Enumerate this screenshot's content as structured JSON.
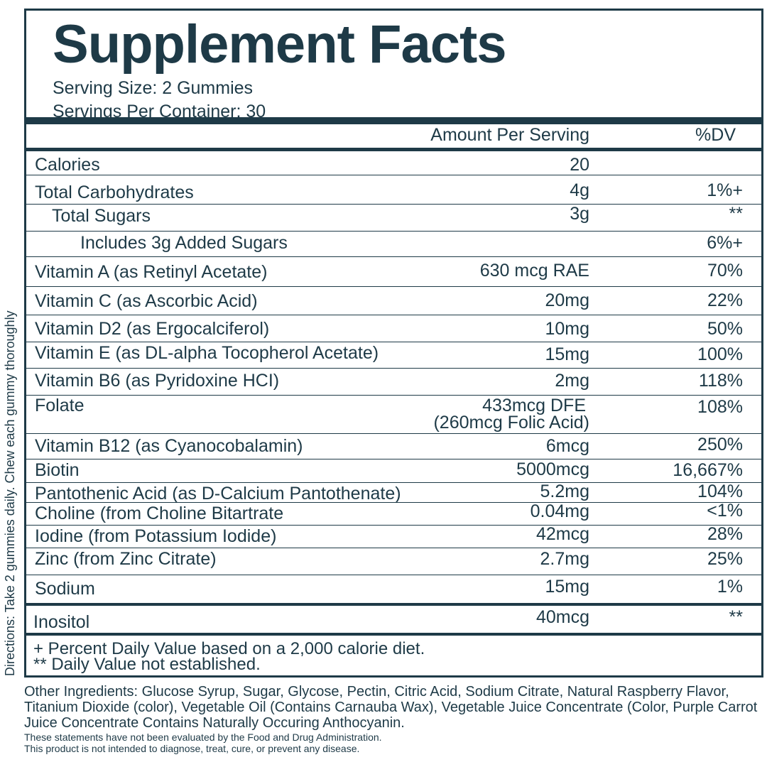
{
  "label": {
    "title": "Supplement Facts",
    "serving_size": "Serving Size: 2 Gummies",
    "servings_per_container": "Servings Per Container: 30",
    "header_amount": "Amount Per Serving",
    "header_dv": "%DV",
    "rows": [
      {
        "name": "Calories",
        "amount": "20",
        "dv": ""
      },
      {
        "name": "Total Carbohydrates",
        "amount": "4g",
        "dv": "1%+"
      },
      {
        "name": "Total Sugars",
        "amount": "3g",
        "dv": "**"
      },
      {
        "name": "Includes 3g Added Sugars",
        "amount": "",
        "dv": "6%+"
      },
      {
        "name": "Vitamin A (as Retinyl Acetate)",
        "amount": "630 mcg RAE",
        "dv": "70%"
      },
      {
        "name": "Vitamin C (as Ascorbic Acid)",
        "amount": "20mg",
        "dv": "22%"
      },
      {
        "name": "Vitamin D2 (as Ergocalciferol)",
        "amount": "10mg",
        "dv": "50%"
      },
      {
        "name": "Vitamin E (as DL-alpha Tocopherol Acetate)",
        "amount": "15mg",
        "dv": "100%"
      },
      {
        "name": "Vitamin B6 (as Pyridoxine HCI)",
        "amount": "2mg",
        "dv": "118%"
      },
      {
        "name": "Folate",
        "amount": "433mcg DFE",
        "amount_2": "(260mcg Folic Acid)",
        "dv": "108%"
      },
      {
        "name": "Vitamin B12 (as Cyanocobalamin)",
        "amount": "6mcg",
        "dv": "250%"
      },
      {
        "name": "Biotin",
        "amount": "5000mcg",
        "dv": "16,667%"
      },
      {
        "name": "Pantothenic Acid (as D-Calcium Pantothenate)",
        "amount": "5.2mg",
        "dv": "104%"
      },
      {
        "name": "Choline (from Choline Bitartrate",
        "amount": "0.04mg",
        "dv": "<1%"
      },
      {
        "name": "Iodine (from Potassium Iodide)",
        "amount": "42mcg",
        "dv": "28%"
      },
      {
        "name": "Zinc (from Zinc Citrate)",
        "amount": "2.7mg",
        "dv": "25%"
      },
      {
        "name": "Sodium",
        "amount": "15mg",
        "dv": "1%"
      },
      {
        "name": "Inositol",
        "amount": "40mcg",
        "dv": "**"
      }
    ],
    "footnote_1": "+ Percent Daily Value based on a 2,000 calorie diet.",
    "footnote_2": "** Daily Value not established."
  },
  "other_ingredients": "Other Ingredients: Glucose Syrup, Sugar, Glycose, Pectin, Citric Acid, Sodium Citrate, Natural Raspberry Flavor, Titanium Dioxide (color), Vegetable Oil (Contains Carnauba Wax), Vegetable Juice Concentrate (Color, Purple Carrot Juice Concentrate Contains Naturally Occuring Anthocyanin.",
  "disclaimer_1": "These statements have not been evaluated by the Food and Drug Administration.",
  "disclaimer_2": "This product is not intended to diagnose, treat, cure, or prevent any disease.",
  "directions": "Directions: Take 2 gummies daily. Chew each gummy thoroughly",
  "colors": {
    "ink": "#1e3a47",
    "background": "#ffffff"
  }
}
